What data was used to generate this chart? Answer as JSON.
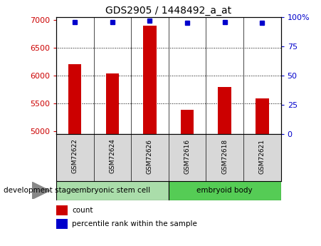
{
  "title": "GDS2905 / 1448492_a_at",
  "categories": [
    "GSM72622",
    "GSM72624",
    "GSM72626",
    "GSM72616",
    "GSM72618",
    "GSM72621"
  ],
  "bar_values": [
    6200,
    6040,
    6900,
    5380,
    5800,
    5590
  ],
  "percentile_values": [
    96,
    96,
    97,
    95,
    96,
    95
  ],
  "ylim_left": [
    4950,
    7050
  ],
  "ylim_right": [
    0,
    100
  ],
  "yticks_left": [
    5000,
    5500,
    6000,
    6500,
    7000
  ],
  "yticks_right": [
    0,
    25,
    50,
    75,
    100
  ],
  "bar_color": "#cc0000",
  "dot_color": "#0000cc",
  "background_color": "#ffffff",
  "plot_bg_color": "#ffffff",
  "name_box_color": "#d8d8d8",
  "group1_label": "embryonic stem cell",
  "group2_label": "embryoid body",
  "group1_color": "#aaddaa",
  "group2_color": "#55cc55",
  "stage_label": "development stage",
  "legend_count_label": "count",
  "legend_pct_label": "percentile rank within the sample",
  "bar_width": 0.35
}
